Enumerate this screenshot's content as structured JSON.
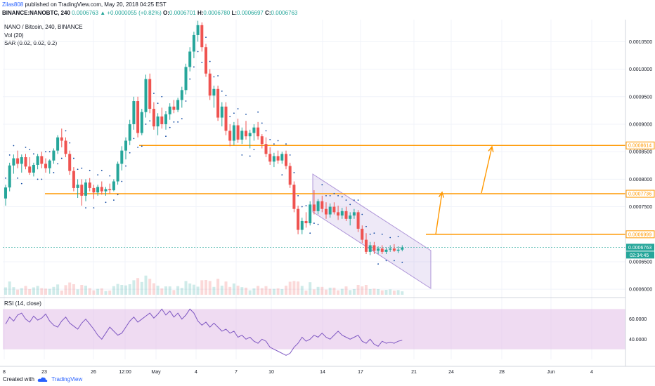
{
  "header": {
    "author": "Zilas808",
    "published_text": "published on TradingView.com, May 20, 2018 04:25 EST",
    "symbol_line": "BINANCE:NANOBTC, 240",
    "last": "0.0006763",
    "change": "+0.0000055 (+0.82%)",
    "o_label": "O:",
    "o_value": "0.0006701",
    "h_label": "H:",
    "h_value": "0.0006780",
    "l_label": "L:",
    "l_value": "0.0006697",
    "c_label": "C:",
    "c_value": "0.0006763"
  },
  "legend": {
    "title": "NANO / Bitcoin, 240, BINANCE",
    "vol": "Vol (20)",
    "sar": "SAR (0.02, 0.02, 0.2)",
    "rsi": "RSI (14, close)"
  },
  "footer": {
    "created_with": "Created with",
    "brand": "TradingView"
  },
  "colors": {
    "up": "#26a69a",
    "down": "#ef5350",
    "level": "#ff9800",
    "channel": "#b39ddb",
    "rsi_band": "#e1bee7",
    "rsi_line": "#7e57c2"
  },
  "chart_data": {
    "type": "candlestick",
    "price_axis_ticks": [
      "0.0010500",
      "0.0010000",
      "0.0009500",
      "0.0009000",
      "0.0008500",
      "0.0008000",
      "0.0007500",
      "0.0006500",
      "0.0006000"
    ],
    "price_ylim": [
      0.00059,
      0.00109
    ],
    "x_tick_labels": [
      "8",
      "23",
      "26",
      "12:00",
      "May",
      "4",
      "7",
      "10",
      "14",
      "17",
      "21",
      "24",
      "28",
      "Jun",
      "4"
    ],
    "levels": [
      {
        "value": 0.0008614,
        "label": "0.0008614"
      },
      {
        "value": 0.0007736,
        "label": "0.0007736"
      },
      {
        "value": 0.0006999,
        "label": "0.0006999"
      }
    ],
    "last_price": {
      "value": 0.0006763,
      "label": "0.0006763",
      "countdown": "02:34:45"
    },
    "rsi": {
      "ticks": [
        "60.0000",
        "40.0000"
      ],
      "ylim": [
        20,
        80
      ],
      "band": [
        30,
        70
      ],
      "values": [
        55,
        62,
        58,
        64,
        66,
        60,
        57,
        63,
        59,
        61,
        65,
        58,
        54,
        52,
        58,
        62,
        56,
        53,
        50,
        56,
        60,
        55,
        50,
        44,
        40,
        46,
        52,
        48,
        44,
        46,
        52,
        58,
        62,
        57,
        60,
        63,
        66,
        61,
        65,
        70,
        64,
        68,
        62,
        66,
        60,
        64,
        70,
        66,
        58,
        54,
        57,
        52,
        56,
        52,
        48,
        50,
        46,
        48,
        42,
        44,
        40,
        42,
        38,
        36,
        40,
        38,
        32,
        30,
        28,
        26,
        24,
        26,
        32,
        36,
        42,
        38,
        40,
        44,
        42,
        46,
        42,
        40,
        44,
        48,
        44,
        42,
        40,
        42,
        44,
        38,
        36,
        40,
        35,
        33,
        38,
        36,
        37,
        36,
        38,
        39
      ]
    },
    "candles": [
      [
        0.000765,
        0.00079,
        0.000752,
        0.000785
      ],
      [
        0.000785,
        0.00083,
        0.000778,
        0.000825
      ],
      [
        0.000825,
        0.000845,
        0.00081,
        0.000838
      ],
      [
        0.000838,
        0.000852,
        0.00082,
        0.000828
      ],
      [
        0.000828,
        0.000845,
        0.000812,
        0.00084
      ],
      [
        0.00084,
        0.000846,
        0.000818,
        0.000823
      ],
      [
        0.000823,
        0.00084,
        0.000808,
        0.000812
      ],
      [
        0.000812,
        0.00083,
        0.000805,
        0.000826
      ],
      [
        0.000826,
        0.000846,
        0.000818,
        0.000842
      ],
      [
        0.000842,
        0.00085,
        0.00082,
        0.000828
      ],
      [
        0.000828,
        0.000838,
        0.000812,
        0.00082
      ],
      [
        0.00082,
        0.000836,
        0.00081,
        0.000834
      ],
      [
        0.000834,
        0.000856,
        0.000828,
        0.000852
      ],
      [
        0.000852,
        0.00088,
        0.000846,
        0.000876
      ],
      [
        0.000876,
        0.000892,
        0.000858,
        0.00087
      ],
      [
        0.00087,
        0.000876,
        0.00084,
        0.000846
      ],
      [
        0.000846,
        0.000852,
        0.000808,
        0.000815
      ],
      [
        0.000815,
        0.000822,
        0.000778,
        0.000784
      ],
      [
        0.000784,
        0.0008,
        0.000766,
        0.00079
      ],
      [
        0.00079,
        0.0008,
        0.000752,
        0.00077
      ],
      [
        0.00077,
        0.0008,
        0.00076,
        0.000794
      ],
      [
        0.000794,
        0.000802,
        0.000778,
        0.000784
      ],
      [
        0.000784,
        0.00079,
        0.000764,
        0.000776
      ],
      [
        0.000776,
        0.00079,
        0.00077,
        0.000786
      ],
      [
        0.000786,
        0.000796,
        0.000772,
        0.000778
      ],
      [
        0.000778,
        0.000786,
        0.00077,
        0.000782
      ],
      [
        0.000782,
        0.000792,
        0.000774,
        0.00078
      ],
      [
        0.00078,
        0.0008,
        0.000778,
        0.000796
      ],
      [
        0.000796,
        0.000832,
        0.00079,
        0.000828
      ],
      [
        0.000828,
        0.00086,
        0.000816,
        0.000852
      ],
      [
        0.000852,
        0.000876,
        0.000836,
        0.00087
      ],
      [
        0.00087,
        0.000908,
        0.000862,
        0.0009
      ],
      [
        0.0009,
        0.00095,
        0.00089,
        0.000942
      ],
      [
        0.000942,
        0.00095,
        0.000876,
        0.000884
      ],
      [
        0.000884,
        0.000928,
        0.00088,
        0.000922
      ],
      [
        0.000922,
        0.00099,
        0.000912,
        0.000982
      ],
      [
        0.000982,
        0.000992,
        0.00092,
        0.000928
      ],
      [
        0.000928,
        0.00094,
        0.00089,
        0.000896
      ],
      [
        0.000896,
        0.00092,
        0.00088,
        0.000914
      ],
      [
        0.000914,
        0.00093,
        0.000892,
        0.0009
      ],
      [
        0.0009,
        0.000924,
        0.00089,
        0.000918
      ],
      [
        0.000918,
        0.000938,
        0.000908,
        0.000932
      ],
      [
        0.000932,
        0.000944,
        0.00092,
        0.000926
      ],
      [
        0.000926,
        0.000948,
        0.000922,
        0.000944
      ],
      [
        0.000944,
        0.000968,
        0.00093,
        0.000962
      ],
      [
        0.000962,
        0.00101,
        0.000954,
        0.001004
      ],
      [
        0.001004,
        0.00104,
        0.000996,
        0.001032
      ],
      [
        0.001032,
        0.001068,
        0.00102,
        0.001062
      ],
      [
        0.001062,
        0.001088,
        0.00105,
        0.00108
      ],
      [
        0.00108,
        0.001085,
        0.001032,
        0.00104
      ],
      [
        0.00104,
        0.001046,
        0.000986,
        0.000992
      ],
      [
        0.000992,
        0.001,
        0.000944,
        0.000952
      ],
      [
        0.000952,
        0.00097,
        0.00093,
        0.000964
      ],
      [
        0.000964,
        0.00097,
        0.000906,
        0.000912
      ],
      [
        0.000912,
        0.00094,
        0.000896,
        0.000932
      ],
      [
        0.000932,
        0.00094,
        0.00088,
        0.000888
      ],
      [
        0.000888,
        0.0009,
        0.00086,
        0.00087
      ],
      [
        0.00087,
        0.000904,
        0.000862,
        0.000898
      ],
      [
        0.000898,
        0.00091,
        0.000866,
        0.000872
      ],
      [
        0.000872,
        0.000894,
        0.000864,
        0.000888
      ],
      [
        0.000888,
        0.000906,
        0.000872,
        0.000878
      ],
      [
        0.000878,
        0.00089,
        0.000856,
        0.000884
      ],
      [
        0.000884,
        0.0009,
        0.00087,
        0.000894
      ],
      [
        0.000894,
        0.000904,
        0.000872,
        0.000878
      ],
      [
        0.000878,
        0.000882,
        0.000856,
        0.000864
      ],
      [
        0.000864,
        0.000876,
        0.00084,
        0.000846
      ],
      [
        0.000846,
        0.000858,
        0.000826,
        0.000832
      ],
      [
        0.000832,
        0.000848,
        0.000822,
        0.000842
      ],
      [
        0.000842,
        0.000852,
        0.000828,
        0.000834
      ],
      [
        0.000834,
        0.00085,
        0.000828,
        0.000846
      ],
      [
        0.000846,
        0.000852,
        0.000818,
        0.000824
      ],
      [
        0.000824,
        0.00083,
        0.000784,
        0.00079
      ],
      [
        0.00079,
        0.000796,
        0.00074,
        0.000746
      ],
      [
        0.000746,
        0.000752,
        0.0007,
        0.000708
      ],
      [
        0.000708,
        0.00073,
        0.0007,
        0.000724
      ],
      [
        0.000724,
        0.00074,
        0.000712,
        0.00072
      ],
      [
        0.00072,
        0.00076,
        0.000716,
        0.000754
      ],
      [
        0.000754,
        0.00078,
        0.000736,
        0.000742
      ],
      [
        0.000742,
        0.000764,
        0.000736,
        0.00076
      ],
      [
        0.00076,
        0.00077,
        0.00074,
        0.000746
      ],
      [
        0.000746,
        0.000758,
        0.000728,
        0.000736
      ],
      [
        0.000736,
        0.000756,
        0.00073,
        0.00075
      ],
      [
        0.00075,
        0.000758,
        0.000736,
        0.00074
      ],
      [
        0.00074,
        0.000752,
        0.000726,
        0.000734
      ],
      [
        0.000734,
        0.000748,
        0.000728,
        0.000742
      ],
      [
        0.000742,
        0.00075,
        0.000724,
        0.000728
      ],
      [
        0.000728,
        0.00074,
        0.000716,
        0.000734
      ],
      [
        0.000734,
        0.000746,
        0.000728,
        0.00074
      ],
      [
        0.00074,
        0.000744,
        0.000704,
        0.00071
      ],
      [
        0.00071,
        0.000716,
        0.000684,
        0.00069
      ],
      [
        0.00069,
        0.000702,
        0.000664,
        0.000668
      ],
      [
        0.000668,
        0.000686,
        0.000662,
        0.00068
      ],
      [
        0.00068,
        0.000686,
        0.000664,
        0.00067
      ],
      [
        0.00067,
        0.000678,
        0.000664,
        0.000674
      ],
      [
        0.000674,
        0.00068,
        0.000664,
        0.000668
      ],
      [
        0.000668,
        0.000676,
        0.000664,
        0.000672
      ],
      [
        0.000672,
        0.00068,
        0.000668,
        0.000674
      ],
      [
        0.000674,
        0.000682,
        0.000668,
        0.00067
      ],
      [
        0.00067,
        0.000678,
        0.000666,
        0.000672
      ],
      [
        0.000672,
        0.00068,
        0.000669,
        0.000676
      ]
    ]
  }
}
